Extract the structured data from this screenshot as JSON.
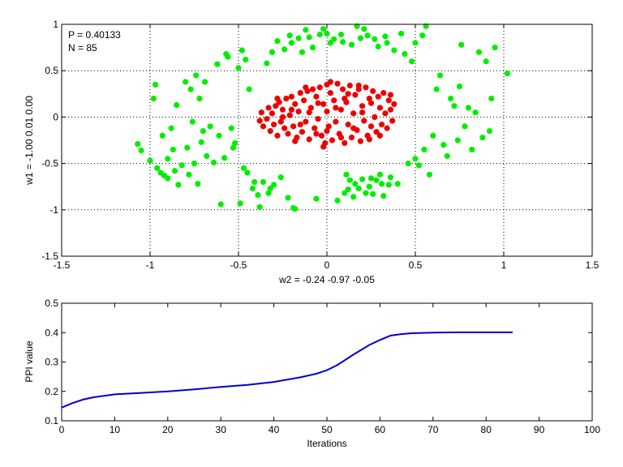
{
  "chart_data": [
    {
      "type": "scatter",
      "title": "",
      "annotation_lines": [
        "P = 0.40133",
        "N = 85"
      ],
      "xlabel": "w2 = -0.24  -0.97  -0.05",
      "ylabel": "w1 = -1.00  0.01  0.00",
      "xlim": [
        -1.5,
        1.5
      ],
      "ylim": [
        -1.5,
        1.0
      ],
      "xticks": [
        -1.5,
        -1,
        -0.5,
        0,
        0.5,
        1,
        1.5
      ],
      "yticks": [
        -1.5,
        -1,
        -0.5,
        0,
        0.5,
        1
      ],
      "xtick_labels": [
        "-1.5",
        "-1",
        "-0.5",
        "0",
        "0.5",
        "1",
        "1.5"
      ],
      "ytick_labels": [
        "-1.5",
        "-1",
        "-0.5",
        "0",
        "0.5",
        "1"
      ],
      "grid": "dotted",
      "series": [
        {
          "color": "#00ee00",
          "points": [
            [
              -1.07,
              -0.29
            ],
            [
              -1.05,
              -0.36
            ],
            [
              -1.0,
              -0.47
            ],
            [
              -0.98,
              0.2
            ],
            [
              -0.97,
              0.35
            ],
            [
              -0.96,
              -0.55
            ],
            [
              -0.94,
              -0.6
            ],
            [
              -0.93,
              -0.2
            ],
            [
              -0.92,
              -0.63
            ],
            [
              -0.9,
              -0.45
            ],
            [
              -0.9,
              -0.66
            ],
            [
              -0.88,
              -0.12
            ],
            [
              -0.87,
              -0.35
            ],
            [
              -0.86,
              -0.58
            ],
            [
              -0.85,
              0.13
            ],
            [
              -0.84,
              -0.73
            ],
            [
              -0.82,
              -0.52
            ],
            [
              -0.8,
              0.38
            ],
            [
              -0.79,
              -0.33
            ],
            [
              -0.78,
              -0.62
            ],
            [
              -0.77,
              0.3
            ],
            [
              -0.76,
              -0.05
            ],
            [
              -0.75,
              -0.5
            ],
            [
              -0.74,
              0.45
            ],
            [
              -0.73,
              -0.72
            ],
            [
              -0.72,
              0.2
            ],
            [
              -0.71,
              -0.27
            ],
            [
              -0.7,
              -0.15
            ],
            [
              -0.69,
              0.38
            ],
            [
              -0.68,
              -0.42
            ],
            [
              -0.66,
              -0.1
            ],
            [
              -0.64,
              -0.49
            ],
            [
              -0.62,
              0.57
            ],
            [
              -0.61,
              -0.2
            ],
            [
              -0.6,
              -0.94
            ],
            [
              -0.58,
              -0.44
            ],
            [
              -0.57,
              0.68
            ],
            [
              -0.56,
              0.65
            ],
            [
              -0.54,
              -0.12
            ],
            [
              -0.53,
              -0.33
            ],
            [
              -0.52,
              -0.28
            ],
            [
              -0.5,
              0.53
            ],
            [
              -0.49,
              -0.93
            ],
            [
              -0.48,
              0.72
            ],
            [
              -0.47,
              -0.55
            ],
            [
              -0.46,
              0.62
            ],
            [
              -0.45,
              -0.6
            ],
            [
              -0.44,
              0.3
            ],
            [
              -0.42,
              -0.77
            ],
            [
              -0.41,
              -0.7
            ],
            [
              -0.39,
              -0.84
            ],
            [
              -0.38,
              -0.97
            ],
            [
              -0.36,
              -0.7
            ],
            [
              -0.34,
              0.58
            ],
            [
              -0.33,
              -0.82
            ],
            [
              -0.32,
              -0.77
            ],
            [
              -0.31,
              0.7
            ],
            [
              -0.3,
              -0.73
            ],
            [
              -0.28,
              0.82
            ],
            [
              -0.26,
              -0.65
            ],
            [
              -0.24,
              0.73
            ],
            [
              -0.22,
              -0.87
            ],
            [
              -0.21,
              0.88
            ],
            [
              -0.2,
              0.8
            ],
            [
              -0.19,
              -0.98
            ],
            [
              -0.18,
              -0.99
            ],
            [
              -0.16,
              0.85
            ],
            [
              -0.14,
              0.7
            ],
            [
              -0.12,
              0.94
            ],
            [
              -0.1,
              0.86
            ],
            [
              -0.08,
              0.75
            ],
            [
              -0.06,
              -0.88
            ],
            [
              -0.04,
              0.89
            ],
            [
              -0.02,
              0.95
            ],
            [
              0.0,
              0.9
            ],
            [
              0.02,
              0.8
            ],
            [
              0.04,
              0.84
            ],
            [
              0.06,
              -0.9
            ],
            [
              0.08,
              0.89
            ],
            [
              0.09,
              0.81
            ],
            [
              0.1,
              -0.82
            ],
            [
              0.11,
              -0.62
            ],
            [
              0.12,
              -0.78
            ],
            [
              0.13,
              -0.68
            ],
            [
              0.14,
              0.78
            ],
            [
              0.15,
              -0.86
            ],
            [
              0.16,
              -0.72
            ],
            [
              0.17,
              0.98
            ],
            [
              0.18,
              -0.77
            ],
            [
              0.19,
              0.85
            ],
            [
              0.2,
              -0.67
            ],
            [
              0.21,
              0.95
            ],
            [
              0.22,
              -0.82
            ],
            [
              0.23,
              0.88
            ],
            [
              0.24,
              -0.75
            ],
            [
              0.25,
              -0.66
            ],
            [
              0.26,
              -0.83
            ],
            [
              0.27,
              0.84
            ],
            [
              0.28,
              -0.68
            ],
            [
              0.29,
              0.76
            ],
            [
              0.3,
              -0.62
            ],
            [
              0.31,
              -0.72
            ],
            [
              0.32,
              -0.85
            ],
            [
              0.33,
              0.87
            ],
            [
              0.34,
              0.8
            ],
            [
              0.35,
              -0.73
            ],
            [
              0.36,
              -0.65
            ],
            [
              0.38,
              0.72
            ],
            [
              0.4,
              -0.72
            ],
            [
              0.42,
              0.9
            ],
            [
              0.44,
              0.68
            ],
            [
              0.46,
              -0.5
            ],
            [
              0.48,
              0.6
            ],
            [
              0.5,
              -0.45
            ],
            [
              0.5,
              0.8
            ],
            [
              0.52,
              -0.52
            ],
            [
              0.54,
              0.88
            ],
            [
              0.55,
              -0.35
            ],
            [
              0.56,
              0.98
            ],
            [
              0.58,
              -0.62
            ],
            [
              0.6,
              -0.2
            ],
            [
              0.62,
              0.3
            ],
            [
              0.64,
              0.45
            ],
            [
              0.66,
              -0.3
            ],
            [
              0.68,
              -0.42
            ],
            [
              0.7,
              0.2
            ],
            [
              0.72,
              0.12
            ],
            [
              0.74,
              -0.25
            ],
            [
              0.75,
              0.33
            ],
            [
              0.76,
              0.78
            ],
            [
              0.78,
              -0.1
            ],
            [
              0.8,
              0.1
            ],
            [
              0.82,
              -0.35
            ],
            [
              0.84,
              0.05
            ],
            [
              0.86,
              0.7
            ],
            [
              0.88,
              -0.22
            ],
            [
              0.9,
              0.6
            ],
            [
              0.92,
              -0.15
            ],
            [
              0.93,
              0.2
            ],
            [
              0.95,
              0.75
            ],
            [
              1.02,
              0.47
            ]
          ]
        },
        {
          "color": "#ee0000",
          "points": [
            [
              -0.38,
              -0.04
            ],
            [
              -0.37,
              0.05
            ],
            [
              -0.36,
              -0.1
            ],
            [
              -0.34,
              -0.02
            ],
            [
              -0.33,
              0.1
            ],
            [
              -0.32,
              -0.15
            ],
            [
              -0.31,
              0.04
            ],
            [
              -0.3,
              -0.08
            ],
            [
              -0.29,
              0.12
            ],
            [
              -0.28,
              -0.2
            ],
            [
              -0.27,
              0.16
            ],
            [
              -0.26,
              -0.05
            ],
            [
              -0.25,
              0.08
            ],
            [
              -0.24,
              -0.12
            ],
            [
              -0.23,
              0.2
            ],
            [
              -0.22,
              -0.18
            ],
            [
              -0.21,
              0.02
            ],
            [
              -0.2,
              0.22
            ],
            [
              -0.19,
              -0.1
            ],
            [
              -0.18,
              0.14
            ],
            [
              -0.17,
              -0.22
            ],
            [
              -0.16,
              0.06
            ],
            [
              -0.15,
              0.26
            ],
            [
              -0.14,
              -0.16
            ],
            [
              -0.13,
              0.18
            ],
            [
              -0.12,
              -0.05
            ],
            [
              -0.11,
              0.28
            ],
            [
              -0.1,
              -0.24
            ],
            [
              -0.09,
              0.1
            ],
            [
              -0.08,
              0.3
            ],
            [
              -0.07,
              -0.12
            ],
            [
              -0.06,
              0.22
            ],
            [
              -0.05,
              -0.02
            ],
            [
              -0.04,
              0.32
            ],
            [
              -0.03,
              -0.2
            ],
            [
              -0.02,
              0.14
            ],
            [
              -0.01,
              -0.28
            ],
            [
              0.0,
              0.06
            ],
            [
              0.0,
              0.35
            ],
            [
              0.01,
              -0.1
            ],
            [
              0.02,
              0.26
            ],
            [
              0.03,
              -0.25
            ],
            [
              0.04,
              0.18
            ],
            [
              0.05,
              -0.05
            ],
            [
              0.06,
              0.36
            ],
            [
              0.07,
              -0.18
            ],
            [
              0.08,
              0.08
            ],
            [
              0.09,
              0.3
            ],
            [
              0.1,
              -0.28
            ],
            [
              0.11,
              0.16
            ],
            [
              0.12,
              -0.08
            ],
            [
              0.13,
              0.34
            ],
            [
              0.14,
              -0.22
            ],
            [
              0.15,
              0.04
            ],
            [
              0.16,
              0.24
            ],
            [
              0.17,
              -0.14
            ],
            [
              0.18,
              0.3
            ],
            [
              0.19,
              -0.26
            ],
            [
              0.2,
              0.12
            ],
            [
              0.21,
              -0.04
            ],
            [
              0.22,
              0.32
            ],
            [
              0.23,
              -0.2
            ],
            [
              0.24,
              0.2
            ],
            [
              0.25,
              -0.1
            ],
            [
              0.26,
              0.28
            ],
            [
              0.27,
              0.0
            ],
            [
              0.28,
              -0.16
            ],
            [
              0.29,
              0.22
            ],
            [
              0.3,
              0.1
            ],
            [
              0.31,
              -0.08
            ],
            [
              0.32,
              0.26
            ],
            [
              0.33,
              0.04
            ],
            [
              0.34,
              -0.12
            ],
            [
              0.35,
              0.18
            ],
            [
              0.36,
              0.08
            ],
            [
              0.37,
              -0.04
            ],
            [
              0.38,
              0.14
            ],
            [
              -0.15,
              -0.08
            ],
            [
              -0.1,
              0.05
            ],
            [
              -0.05,
              0.15
            ],
            [
              0.0,
              -0.15
            ],
            [
              0.05,
              0.1
            ],
            [
              0.1,
              0.2
            ],
            [
              0.15,
              -0.12
            ],
            [
              0.2,
              0.05
            ],
            [
              0.25,
              0.15
            ],
            [
              -0.2,
              0.08
            ],
            [
              -0.25,
              0.0
            ],
            [
              0.12,
              0.25
            ],
            [
              -0.06,
              -0.18
            ],
            [
              0.08,
              -0.22
            ],
            [
              0.18,
              0.34
            ],
            [
              -0.12,
              0.32
            ],
            [
              0.02,
              0.38
            ],
            [
              0.24,
              -0.24
            ],
            [
              -0.18,
              -0.26
            ],
            [
              0.3,
              -0.2
            ],
            [
              -0.28,
              0.2
            ],
            [
              0.36,
              0.24
            ],
            [
              -0.02,
              -0.32
            ]
          ]
        }
      ]
    },
    {
      "type": "line",
      "title": "",
      "xlabel": "Iterations",
      "ylabel": "PPI value",
      "xlim": [
        0,
        100
      ],
      "ylim": [
        0.1,
        0.5
      ],
      "xticks": [
        0,
        10,
        20,
        30,
        40,
        50,
        60,
        70,
        80,
        90,
        100
      ],
      "yticks": [
        0.1,
        0.2,
        0.3,
        0.4,
        0.5
      ],
      "xtick_labels": [
        "0",
        "10",
        "20",
        "30",
        "40",
        "50",
        "60",
        "70",
        "80",
        "90",
        "100"
      ],
      "ytick_labels": [
        "0.1",
        "0.2",
        "0.3",
        "0.4",
        "0.5"
      ],
      "grid": "off",
      "series": [
        {
          "color": "#0000cc",
          "x": [
            0,
            2,
            4,
            6,
            8,
            10,
            15,
            20,
            25,
            30,
            35,
            40,
            45,
            48,
            50,
            52,
            55,
            58,
            60,
            62,
            64,
            66,
            70,
            75,
            80,
            85
          ],
          "values": [
            0.145,
            0.16,
            0.172,
            0.18,
            0.185,
            0.19,
            0.195,
            0.2,
            0.207,
            0.215,
            0.222,
            0.232,
            0.248,
            0.26,
            0.272,
            0.29,
            0.325,
            0.358,
            0.375,
            0.39,
            0.395,
            0.398,
            0.4,
            0.401,
            0.401,
            0.401
          ]
        }
      ]
    }
  ]
}
